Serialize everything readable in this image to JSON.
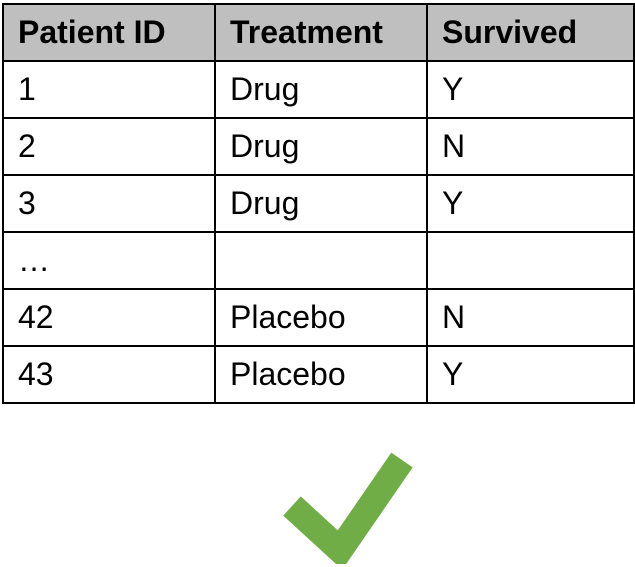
{
  "table": {
    "headers": [
      "Patient ID",
      "Treatment",
      "Survived"
    ],
    "rows": [
      [
        "1",
        "Drug",
        "Y"
      ],
      [
        "2",
        "Drug",
        "N"
      ],
      [
        "3",
        "Drug",
        "Y"
      ],
      [
        "…",
        "",
        ""
      ],
      [
        "42",
        "Placebo",
        "N"
      ],
      [
        "43",
        "Placebo",
        "Y"
      ]
    ]
  },
  "check_icon": {
    "name": "checkmark-icon",
    "color": "#70ad47"
  }
}
